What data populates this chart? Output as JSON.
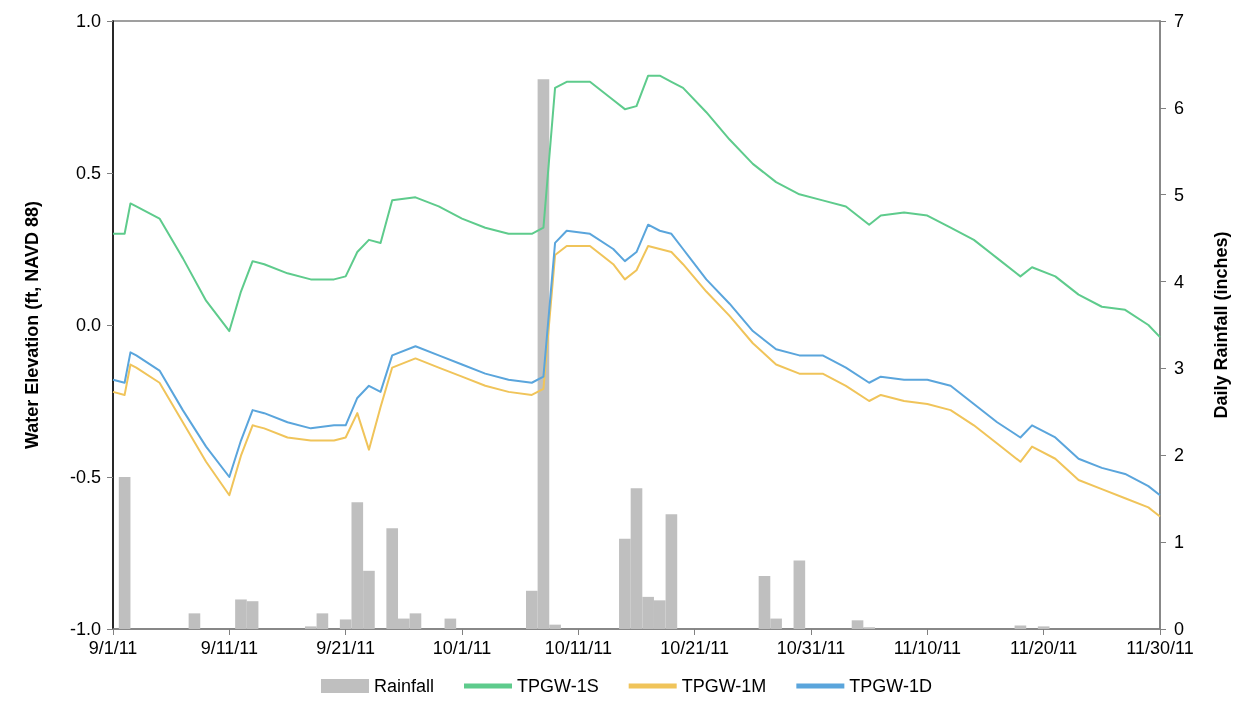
{
  "chart_data": {
    "type": "line",
    "ylabel": "Water Elevation (ft, NAVD 88)",
    "y2label": "Daily Rainfall (inches)",
    "x": [
      "--09-01",
      "--09-02",
      "--09-02T12:00",
      "--09-03",
      "--09-05",
      "--09-07",
      "--09-09",
      "--09-11",
      "--09-12",
      "--09-13",
      "--09-14",
      "--09-16",
      "--09-18",
      "--09-20",
      "--09-21",
      "--09-22",
      "--09-23",
      "--09-24",
      "--09-25",
      "--09-27",
      "--09-29",
      "--10-01",
      "--10-03",
      "--10-05",
      "--10-07",
      "--10-08",
      "--10-09",
      "--10-10",
      "--10-12",
      "--10-14",
      "--10-15",
      "--10-16",
      "--10-17",
      "--10-18",
      "--10-19",
      "--10-20",
      "--10-22",
      "--10-24",
      "--10-26",
      "--10-28",
      "--10-30",
      "--11-01",
      "--11-03",
      "--11-05",
      "--11-06",
      "--11-08",
      "--11-10",
      "--11-12",
      "--11-14",
      "--11-16",
      "--11-18",
      "--11-19",
      "--11-21",
      "--11-23",
      "--11-25",
      "--11-27",
      "--11-29",
      "--11-30"
    ],
    "series": [
      {
        "name": "Rainfall",
        "type": "bar",
        "axis": "y2",
        "color": "#bfbfbf",
        "x": [
          "--09-02",
          "--09-08",
          "--09-09",
          "--09-12",
          "--09-13",
          "--09-18",
          "--09-19",
          "--09-21",
          "--09-22",
          "--09-23",
          "--09-25",
          "--09-26",
          "--09-27",
          "--09-30",
          "--10-07",
          "--10-08",
          "--10-09",
          "--10-15",
          "--10-16",
          "--10-17",
          "--10-18",
          "--10-19",
          "--10-27",
          "--10-28",
          "--10-30",
          "--11-04",
          "--11-05",
          "--11-18",
          "--11-20"
        ],
        "values": [
          1.75,
          0.18,
          null,
          0.34,
          0.32,
          0.03,
          0.18,
          0.11,
          1.46,
          0.67,
          1.16,
          0.12,
          0.18,
          0.12,
          0.44,
          6.33,
          0.05,
          1.04,
          1.62,
          0.37,
          0.33,
          1.32,
          0.61,
          0.12,
          0.79,
          0.1,
          0.02,
          0.04,
          0.03
        ]
      },
      {
        "name": "TPGW-1S",
        "color": "#5ecb8c",
        "values": [
          0.3,
          0.3,
          0.4,
          0.39,
          0.35,
          0.22,
          0.08,
          -0.02,
          0.11,
          0.21,
          0.2,
          0.17,
          0.15,
          0.15,
          0.16,
          0.24,
          0.28,
          0.27,
          0.41,
          0.42,
          0.39,
          0.35,
          0.32,
          0.3,
          0.3,
          0.32,
          0.78,
          0.8,
          0.8,
          0.74,
          0.71,
          0.72,
          0.82,
          0.82,
          0.8,
          0.78,
          0.7,
          0.61,
          0.53,
          0.47,
          0.43,
          0.41,
          0.39,
          0.33,
          0.36,
          0.37,
          0.36,
          0.32,
          0.28,
          0.22,
          0.16,
          0.19,
          0.16,
          0.1,
          0.06,
          0.05,
          0.0,
          -0.04
        ]
      },
      {
        "name": "TPGW-1M",
        "color": "#f0c45a",
        "values": [
          -0.22,
          -0.23,
          -0.13,
          -0.14,
          -0.19,
          -0.32,
          -0.45,
          -0.56,
          -0.43,
          -0.33,
          -0.34,
          -0.37,
          -0.38,
          -0.38,
          -0.37,
          -0.29,
          -0.41,
          -0.27,
          -0.14,
          -0.11,
          -0.14,
          -0.17,
          -0.2,
          -0.22,
          -0.23,
          -0.21,
          0.23,
          0.26,
          0.26,
          0.2,
          0.15,
          0.18,
          0.26,
          0.25,
          0.24,
          0.2,
          0.11,
          0.03,
          -0.06,
          -0.13,
          -0.16,
          -0.16,
          -0.2,
          -0.25,
          -0.23,
          -0.25,
          -0.26,
          -0.28,
          -0.33,
          -0.39,
          -0.45,
          -0.4,
          -0.44,
          -0.51,
          -0.54,
          -0.57,
          -0.6,
          -0.63
        ]
      },
      {
        "name": "TPGW-1D",
        "color": "#5aa5dc",
        "values": [
          -0.18,
          -0.19,
          -0.09,
          -0.1,
          -0.15,
          -0.28,
          -0.4,
          -0.5,
          -0.38,
          -0.28,
          -0.29,
          -0.32,
          -0.34,
          -0.33,
          -0.33,
          -0.24,
          -0.2,
          -0.22,
          -0.1,
          -0.07,
          -0.1,
          -0.13,
          -0.16,
          -0.18,
          -0.19,
          -0.17,
          0.27,
          0.31,
          0.3,
          0.25,
          0.21,
          0.24,
          0.33,
          0.31,
          0.3,
          0.25,
          0.15,
          0.07,
          -0.02,
          -0.08,
          -0.1,
          -0.1,
          -0.14,
          -0.19,
          -0.17,
          -0.18,
          -0.18,
          -0.2,
          -0.26,
          -0.32,
          -0.37,
          -0.33,
          -0.37,
          -0.44,
          -0.47,
          -0.49,
          -0.53,
          -0.56
        ]
      }
    ],
    "xlim": [
      "--09-01",
      "--11-30"
    ],
    "xticks": [
      {
        "value": "--09-01",
        "label": "9/1/11"
      },
      {
        "value": "--09-11",
        "label": "9/11/11"
      },
      {
        "value": "--09-21",
        "label": "9/21/11"
      },
      {
        "value": "--10-01",
        "label": "10/1/11"
      },
      {
        "value": "--10-11",
        "label": "10/11/11"
      },
      {
        "value": "--10-21",
        "label": "10/21/11"
      },
      {
        "value": "--10-31",
        "label": "10/31/11"
      },
      {
        "value": "--11-10",
        "label": "11/10/11"
      },
      {
        "value": "--11-20",
        "label": "11/20/11"
      },
      {
        "value": "--11-30",
        "label": "11/30/11"
      }
    ],
    "ylim": [
      -1,
      1
    ],
    "yticks": [
      {
        "value": -1,
        "label": "-1.0"
      },
      {
        "value": -0.5,
        "label": "-0.5"
      },
      {
        "value": 0,
        "label": "0.0"
      },
      {
        "value": 0.5,
        "label": "0.5"
      },
      {
        "value": 1,
        "label": "1.0"
      }
    ],
    "y2lim": [
      0,
      7
    ],
    "y2ticks": [
      0,
      1,
      2,
      3,
      4,
      5,
      6,
      7
    ],
    "legend": "bottom",
    "grid": false,
    "marker": "none",
    "line_style": "solid"
  }
}
